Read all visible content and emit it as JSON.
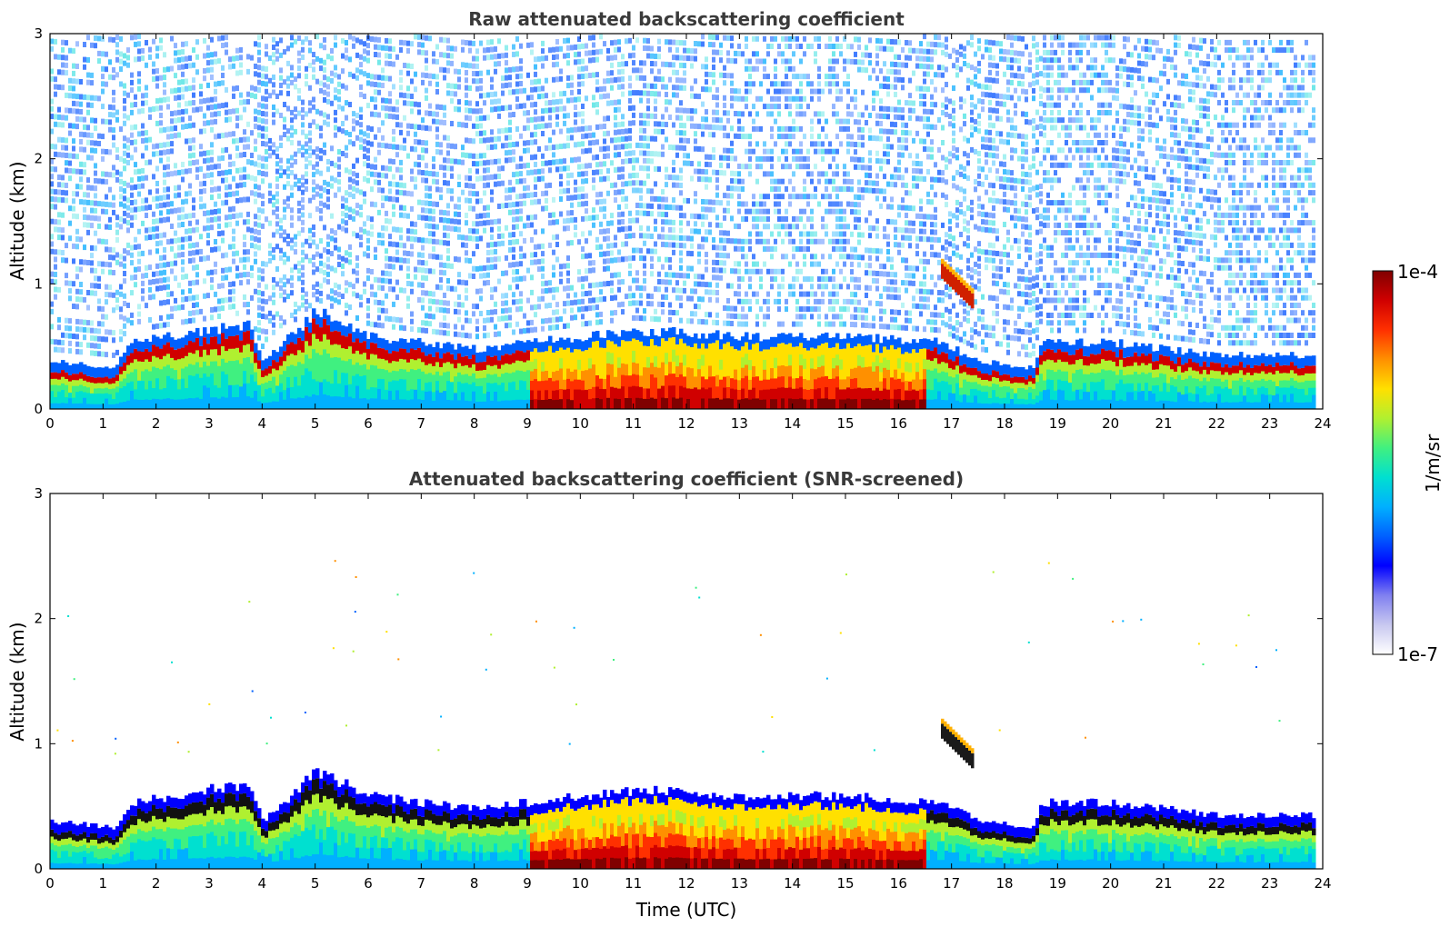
{
  "chart_data": [
    {
      "type": "heatmap",
      "title": "Raw attenuated backscattering coefficient",
      "xlabel": "",
      "ylabel": "Altitude (km)",
      "xlim": [
        0,
        24
      ],
      "ylim": [
        0,
        3
      ],
      "x_ticks": [
        "0",
        "1",
        "2",
        "3",
        "4",
        "5",
        "6",
        "7",
        "8",
        "9",
        "10",
        "11",
        "12",
        "13",
        "14",
        "15",
        "16",
        "17",
        "18",
        "19",
        "20",
        "21",
        "22",
        "23",
        "24"
      ],
      "y_ticks": [
        "0",
        "1",
        "2",
        "3"
      ],
      "colorscale": "jet (log)",
      "noise_floor": "high noise above boundary layer up to 3 km",
      "layers": [
        {
          "name": "boundary layer top",
          "t": [
            0,
            1.2,
            1.5,
            3.7,
            4.0,
            5.0,
            6.0,
            8.0,
            9.0,
            11.0,
            13.0,
            15.0,
            16.8,
            17.5,
            18.5,
            18.7,
            20.0,
            21.0,
            22.0,
            23.8
          ],
          "h_km": [
            0.3,
            0.25,
            0.45,
            0.6,
            0.3,
            0.7,
            0.5,
            0.4,
            0.45,
            0.55,
            0.5,
            0.5,
            0.45,
            0.3,
            0.25,
            0.45,
            0.45,
            0.4,
            0.35,
            0.35
          ]
        },
        {
          "name": "elevated aerosol plume",
          "t": [
            16.8,
            17.4
          ],
          "h_km": [
            1.1,
            0.85
          ]
        }
      ]
    },
    {
      "type": "heatmap",
      "title": "Attenuated backscattering coefficient (SNR-screened)",
      "xlabel": "Time (UTC)",
      "ylabel": "Altitude (km)",
      "xlim": [
        0,
        24
      ],
      "ylim": [
        0,
        3
      ],
      "x_ticks": [
        "0",
        "1",
        "2",
        "3",
        "4",
        "5",
        "6",
        "7",
        "8",
        "9",
        "10",
        "11",
        "12",
        "13",
        "14",
        "15",
        "16",
        "17",
        "18",
        "19",
        "20",
        "21",
        "22",
        "23",
        "24"
      ],
      "y_ticks": [
        "0",
        "1",
        "2",
        "3"
      ],
      "colorscale": "jet (log)"
    }
  ],
  "colorbar": {
    "max_label": "1e-4",
    "min_label": "1e-7",
    "unit_label": "1/m/sr",
    "colors": [
      "#ffffff",
      "#c8c8f0",
      "#8080f0",
      "#0000ff",
      "#0060ff",
      "#00b0ff",
      "#00e0d0",
      "#40f080",
      "#b0f030",
      "#ffe000",
      "#ff9000",
      "#ff3000",
      "#d00000",
      "#800000"
    ]
  }
}
